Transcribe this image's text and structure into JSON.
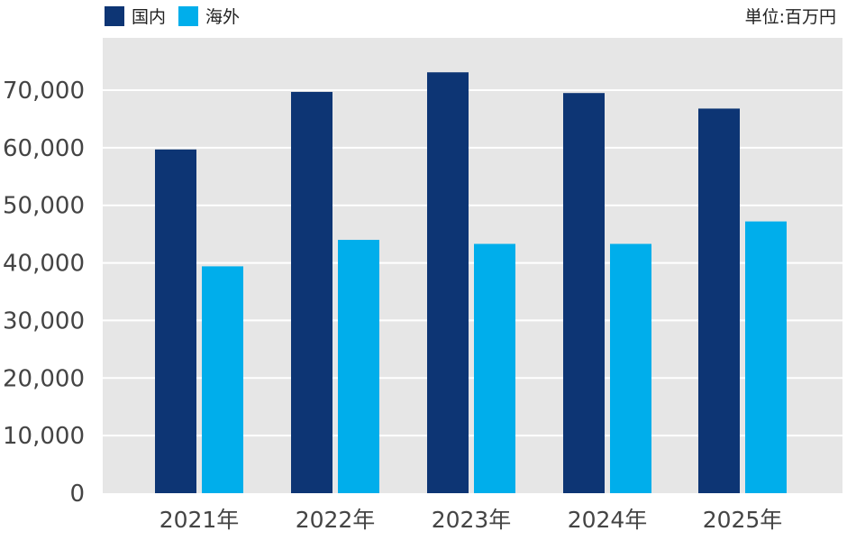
{
  "legend": [
    {
      "label": "国内",
      "color": "#0d3574"
    },
    {
      "label": "海外",
      "color": "#00aeeb"
    }
  ],
  "unit_label": "単位:百万円",
  "chart_data": {
    "type": "bar",
    "categories": [
      "2021年",
      "2022年",
      "2023年",
      "2024年",
      "2025年"
    ],
    "series": [
      {
        "name": "国内",
        "color": "#0d3574",
        "values": [
          59700,
          69700,
          73100,
          69500,
          66800
        ]
      },
      {
        "name": "海外",
        "color": "#00aeeb",
        "values": [
          39400,
          44000,
          43300,
          43300,
          47200
        ]
      }
    ],
    "ylim": [
      0,
      70000
    ],
    "yticks": [
      0,
      10000,
      20000,
      30000,
      40000,
      50000,
      60000,
      70000
    ],
    "ytick_labels": [
      "0",
      "10,000",
      "20,000",
      "30,000",
      "40,000",
      "50,000",
      "60,000",
      "70,000"
    ],
    "grid": true,
    "legend_position": "top-left"
  }
}
